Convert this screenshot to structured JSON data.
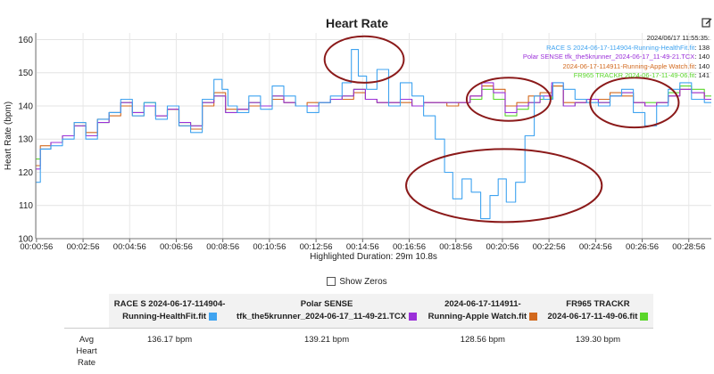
{
  "title": "Heart Rate",
  "tooltip": {
    "time": "2024/06/17 11:55:35:",
    "rows": [
      {
        "name": "RACE S 2024-06-17-114904-Running-HealthFit.fit",
        "value": "138"
      },
      {
        "name": "Polar SENSE tfk_the5krunner_2024-06-17_11-49-21.TCX",
        "value": "140"
      },
      {
        "name": "2024-06-17-114911-Running-Apple Watch.fit",
        "value": "140"
      },
      {
        "name": "FR965 TRACKR 2024-06-17-11-49-06.fit",
        "value": "141"
      }
    ]
  },
  "footer_label": "Highlighted Duration: 29m 10.8s",
  "show_zeros_label": "Show Zeros",
  "summary": {
    "row_label": [
      "Avg",
      "Heart",
      "Rate"
    ],
    "columns": [
      {
        "line1": "RACE S 2024-06-17-114904-",
        "line2": "Running-HealthFit.fit",
        "value": "136.17 bpm",
        "color": "#3fa3f0"
      },
      {
        "line1": "Polar SENSE",
        "line2": "tfk_the5krunner_2024-06-17_11-49-21.TCX",
        "value": "139.21 bpm",
        "color": "#9b30d9"
      },
      {
        "line1": "2024-06-17-114911-",
        "line2": "Running-Apple Watch.fit",
        "value": "128.56 bpm",
        "color": "#d2691e"
      },
      {
        "line1": "FR965 TRACKR",
        "line2": "2024-06-17-11-49-06.fit",
        "value": "139.30 bpm",
        "color": "#5ad62a"
      }
    ]
  },
  "chart_data": {
    "type": "line",
    "title": "Heart Rate",
    "xlabel": "Highlighted Duration: 29m 10.8s",
    "ylabel": "Heart Rate (bpm)",
    "ylim": [
      100,
      162
    ],
    "xlim": [
      0.9,
      29.9
    ],
    "x_unit": "minutes",
    "yticks": [
      100,
      110,
      120,
      130,
      140,
      150,
      160
    ],
    "xtick_labels": [
      "00:00:56",
      "00:02:56",
      "00:04:56",
      "00:06:56",
      "00:08:56",
      "00:10:56",
      "00:12:56",
      "00:14:56",
      "00:16:56",
      "00:18:56",
      "00:20:56",
      "00:22:56",
      "00:24:56",
      "00:26:56",
      "00:28:56"
    ],
    "xticks": [
      0.933,
      2.933,
      4.933,
      6.933,
      8.933,
      10.933,
      12.933,
      14.933,
      16.933,
      18.933,
      20.933,
      22.933,
      24.933,
      26.933,
      28.933
    ],
    "grid": true,
    "colors": {
      "race_s": "#3fa3f0",
      "polar": "#9b30d9",
      "apple": "#d2691e",
      "fr965": "#5ad62a",
      "annotation": "#8b1a1a"
    },
    "series": [
      {
        "name": "RACE S 2024-06-17-114904-Running-HealthFit.fit",
        "color": "#3fa3f0",
        "x": [
          0.9,
          1.3,
          1.8,
          2.3,
          2.8,
          3.3,
          3.8,
          4.3,
          4.8,
          5.3,
          5.8,
          6.3,
          6.8,
          7.3,
          7.8,
          8.3,
          8.8,
          9.0,
          9.3,
          9.8,
          10.3,
          10.8,
          11.3,
          11.8,
          12.3,
          12.8,
          13.3,
          13.8,
          14.3,
          14.6,
          14.9,
          15.3,
          15.8,
          16.3,
          16.8,
          17.3,
          17.8,
          18.3,
          18.6,
          19.0,
          19.4,
          19.8,
          20.2,
          20.6,
          20.9,
          21.3,
          21.7,
          22.1,
          22.5,
          22.9,
          23.3,
          23.8,
          24.3,
          24.8,
          25.3,
          25.8,
          26.3,
          26.8,
          27.3,
          27.8,
          28.3,
          28.8,
          29.3,
          29.9
        ],
        "y": [
          117,
          127,
          128,
          130,
          135,
          130,
          136,
          138,
          142,
          137,
          141,
          136,
          140,
          134,
          132,
          142,
          148,
          145,
          140,
          138,
          143,
          139,
          146,
          143,
          140,
          138,
          141,
          143,
          147,
          157,
          149,
          145,
          151,
          140,
          147,
          143,
          137,
          130,
          120,
          112,
          118,
          114,
          106,
          113,
          118,
          111,
          117,
          131,
          143,
          142,
          147,
          145,
          142,
          141,
          140,
          143,
          145,
          138,
          134,
          140,
          145,
          147,
          142,
          141
        ]
      },
      {
        "name": "Polar SENSE tfk_the5krunner_2024-06-17_11-49-21.TCX",
        "color": "#9b30d9",
        "x": [
          0.9,
          1.3,
          1.8,
          2.3,
          2.8,
          3.3,
          3.8,
          4.3,
          4.8,
          5.3,
          5.8,
          6.3,
          6.8,
          7.3,
          7.8,
          8.3,
          8.8,
          9.3,
          9.8,
          10.3,
          10.8,
          11.3,
          11.8,
          12.3,
          12.8,
          13.3,
          13.8,
          14.3,
          14.8,
          15.3,
          15.8,
          16.3,
          16.8,
          17.3,
          17.8,
          18.3,
          18.8,
          19.3,
          19.8,
          20.3,
          20.8,
          21.3,
          21.8,
          22.3,
          22.8,
          23.3,
          23.8,
          24.3,
          24.8,
          25.3,
          25.8,
          26.3,
          26.8,
          27.3,
          27.8,
          28.3,
          28.8,
          29.3,
          29.9
        ],
        "y": [
          121,
          127,
          129,
          131,
          134,
          131,
          135,
          138,
          141,
          138,
          140,
          137,
          139,
          135,
          134,
          141,
          143,
          138,
          139,
          141,
          140,
          143,
          141,
          140,
          140,
          141,
          142,
          143,
          145,
          142,
          141,
          141,
          142,
          140,
          141,
          141,
          141,
          141,
          143,
          147,
          144,
          138,
          140,
          141,
          143,
          147,
          140,
          141,
          142,
          141,
          143,
          144,
          141,
          140,
          141,
          143,
          145,
          144,
          142
        ]
      },
      {
        "name": "2024-06-17-114911-Running-Apple Watch.fit",
        "color": "#d2691e",
        "x": [
          0.9,
          1.3,
          1.8,
          2.3,
          2.8,
          3.3,
          3.8,
          4.3,
          4.8,
          5.3,
          5.8,
          6.3,
          6.8,
          7.3,
          7.8,
          8.3,
          8.8,
          9.3,
          9.8,
          10.3,
          10.8,
          11.3,
          11.8,
          12.3,
          12.8,
          13.3,
          13.8,
          14.3,
          14.8,
          15.3,
          15.8,
          16.3,
          16.8,
          17.3,
          17.8,
          18.3,
          18.8,
          19.3,
          19.8,
          20.3,
          20.8,
          21.3,
          21.8,
          22.3,
          22.8,
          23.3,
          23.8,
          24.3,
          24.8,
          25.3,
          25.8,
          26.3,
          26.8,
          27.3,
          27.8,
          28.3,
          28.8,
          29.3,
          29.9
        ],
        "y": [
          122,
          128,
          129,
          131,
          135,
          132,
          136,
          137,
          140,
          137,
          140,
          137,
          139,
          134,
          133,
          140,
          144,
          139,
          139,
          140,
          140,
          142,
          141,
          140,
          141,
          141,
          142,
          142,
          144,
          142,
          141,
          141,
          141,
          140,
          141,
          141,
          140,
          141,
          143,
          146,
          145,
          140,
          141,
          143,
          144,
          146,
          141,
          141,
          142,
          142,
          144,
          143,
          141,
          140,
          141,
          143,
          145,
          144,
          142
        ]
      },
      {
        "name": "FR965 TRACKR 2024-06-17-11-49-06.fit",
        "color": "#5ad62a",
        "x": [
          0.9,
          1.3,
          1.8,
          2.3,
          2.8,
          3.3,
          3.8,
          4.3,
          4.8,
          5.3,
          5.8,
          6.3,
          6.8,
          7.3,
          7.8,
          8.3,
          8.8,
          9.3,
          9.8,
          10.3,
          10.8,
          11.3,
          11.8,
          12.3,
          12.8,
          13.3,
          13.8,
          14.3,
          14.8,
          15.3,
          15.8,
          16.3,
          16.8,
          17.3,
          17.8,
          18.3,
          18.8,
          19.3,
          19.8,
          20.3,
          20.8,
          21.3,
          21.8,
          22.3,
          22.8,
          23.3,
          23.8,
          24.3,
          24.8,
          25.3,
          25.8,
          26.3,
          26.8,
          27.3,
          27.8,
          28.3,
          28.8,
          29.3,
          29.9
        ],
        "y": [
          124,
          127,
          129,
          131,
          134,
          131,
          135,
          138,
          141,
          138,
          141,
          137,
          139,
          135,
          134,
          141,
          143,
          138,
          139,
          141,
          140,
          143,
          141,
          140,
          140,
          141,
          142,
          143,
          145,
          142,
          141,
          141,
          142,
          140,
          141,
          141,
          141,
          141,
          142,
          145,
          142,
          137,
          139,
          141,
          142,
          146,
          140,
          141,
          142,
          141,
          143,
          144,
          141,
          141,
          141,
          144,
          146,
          145,
          143
        ]
      }
    ],
    "annotations": [
      {
        "type": "ellipse",
        "cx": 15.0,
        "cy": 154,
        "rx": 1.7,
        "ry": 7
      },
      {
        "type": "ellipse",
        "cx": 21.2,
        "cy": 142,
        "rx": 1.8,
        "ry": 6.5
      },
      {
        "type": "ellipse",
        "cx": 21.0,
        "cy": 116,
        "rx": 4.2,
        "ry": 11
      },
      {
        "type": "ellipse",
        "cx": 26.6,
        "cy": 141,
        "rx": 1.9,
        "ry": 7.5
      }
    ]
  }
}
